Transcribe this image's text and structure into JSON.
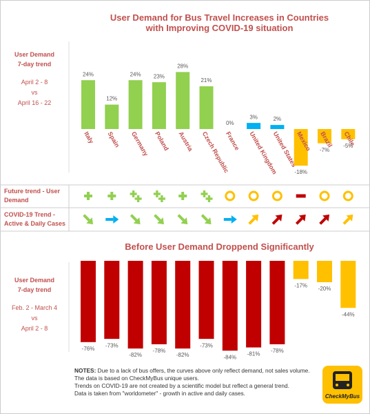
{
  "title": [
    "User Demand for Bus Travel Increases in Countries",
    "with Improving COVID-19 situation"
  ],
  "panels": [
    {
      "heading": [
        "User Demand",
        "7-day trend"
      ],
      "period_a": "April 2 - 8",
      "vs": "vs",
      "period_b": "April 16 - 22"
    },
    {
      "heading": [
        "User Demand",
        "7-day trend"
      ],
      "period_a": "Feb. 2 - March 4",
      "vs": "vs",
      "period_b": "April 2 - 8"
    }
  ],
  "trend_rows": [
    {
      "label": "Future trend - User Demand"
    },
    {
      "label": "COVID-19 Trend - Active & Daily Cases"
    }
  ],
  "chart_data": [
    {
      "type": "bar",
      "categories": [
        "Italy",
        "Spain",
        "Germany",
        "Poland",
        "Austria",
        "Czech Republic",
        "France",
        "United Kingdom",
        "United States",
        "Mexico",
        "Brazil",
        "Chile"
      ],
      "values": [
        24,
        12,
        24,
        23,
        28,
        21,
        0,
        3,
        2,
        -18,
        -7,
        -5
      ],
      "value_labels": [
        "24%",
        "12%",
        "24%",
        "23%",
        "28%",
        "21%",
        "0%",
        "3%",
        "2%",
        "-18%",
        "-7%",
        "-5%"
      ],
      "colors": [
        "#92d050",
        "#92d050",
        "#92d050",
        "#92d050",
        "#92d050",
        "#92d050",
        "#92d050",
        "#00b0f0",
        "#00b0f0",
        "#ffc000",
        "#ffc000",
        "#ffc000"
      ]
    },
    {
      "type": "bar",
      "title": "Before User Demand Droppend Significantly",
      "values": [
        -76,
        -73,
        -82,
        -78,
        -82,
        -73,
        -84,
        -81,
        -78,
        -17,
        -20,
        -44
      ],
      "value_labels": [
        "-76%",
        "-73%",
        "-82%",
        "-78%",
        "-82%",
        "-73%",
        "-84%",
        "-81%",
        "-78%",
        "-17%",
        "-20%",
        "-44%"
      ],
      "colors": [
        "#c00000",
        "#c00000",
        "#c00000",
        "#c00000",
        "#c00000",
        "#c00000",
        "#c00000",
        "#c00000",
        "#c00000",
        "#ffc000",
        "#ffc000",
        "#ffc000"
      ]
    }
  ],
  "notes": {
    "label": "NOTES:",
    "lines": [
      "Due to a lack of bus offers, the curves above only reflect demand, not sales volume. The data is based on CheckMyBus unique users.",
      "Trends on COVID-19 are not created by a scientific model but reflect a general trend.",
      "Data is taken from \"worldometer\" - growth in active and daily cases."
    ]
  },
  "logo": "CheckMyBus"
}
